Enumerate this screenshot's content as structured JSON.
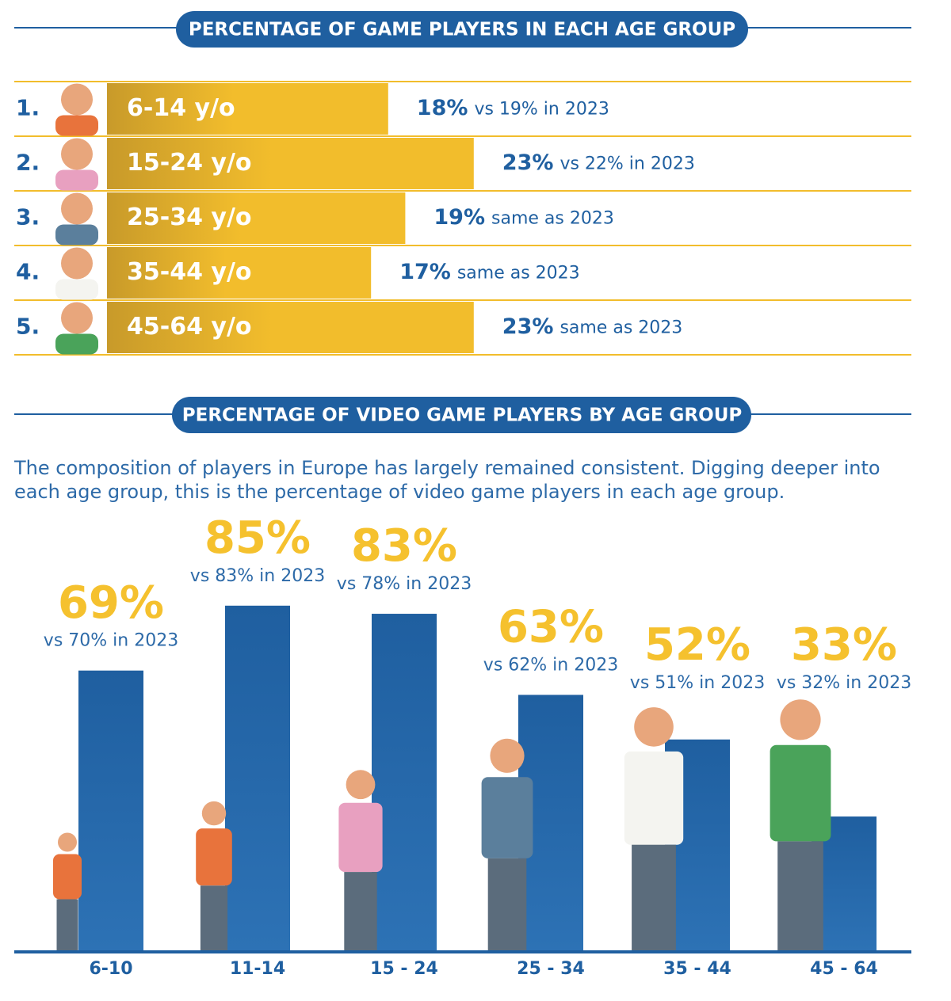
{
  "chart_data": [
    {
      "type": "hbar",
      "title": "PERCENTAGE OF GAME PLAYERS IN EACH AGE GROUP",
      "ranks": [
        "1.",
        "2.",
        "3.",
        "4.",
        "5."
      ],
      "categories": [
        "6-14 y/o",
        "15-24 y/o",
        "25-34 y/o",
        "35-44 y/o",
        "45-64 y/o"
      ],
      "values": [
        18,
        23,
        19,
        17,
        23
      ],
      "value_labels": [
        "18%",
        "23%",
        "19%",
        "17%",
        "23%"
      ],
      "notes": [
        "vs 19% in 2023",
        "vs 22% in 2023",
        "same as 2023",
        "same as 2023",
        "same as 2023"
      ],
      "color": "#f2bd2c"
    },
    {
      "type": "bar",
      "title": "PERCENTAGE OF VIDEO GAME PLAYERS BY AGE GROUP",
      "subtitle": "The composition of players in Europe has largely remained consistent. Digging deeper into each age group, this is the percentage of video game players in each age group.",
      "categories": [
        "6-10",
        "11-14",
        "15 - 24",
        "25 - 34",
        "35 - 44",
        "45 - 64"
      ],
      "values": [
        69,
        85,
        83,
        63,
        52,
        33
      ],
      "value_labels": [
        "69%",
        "85%",
        "83%",
        "63%",
        "52%",
        "33%"
      ],
      "notes": [
        "vs 70% in 2023",
        "vs 83% in 2023",
        "vs 78% in 2023",
        "vs 62% in 2023",
        "vs 51% in 2023",
        "vs 32% in 2023"
      ],
      "color": "#1f5fa0"
    }
  ]
}
